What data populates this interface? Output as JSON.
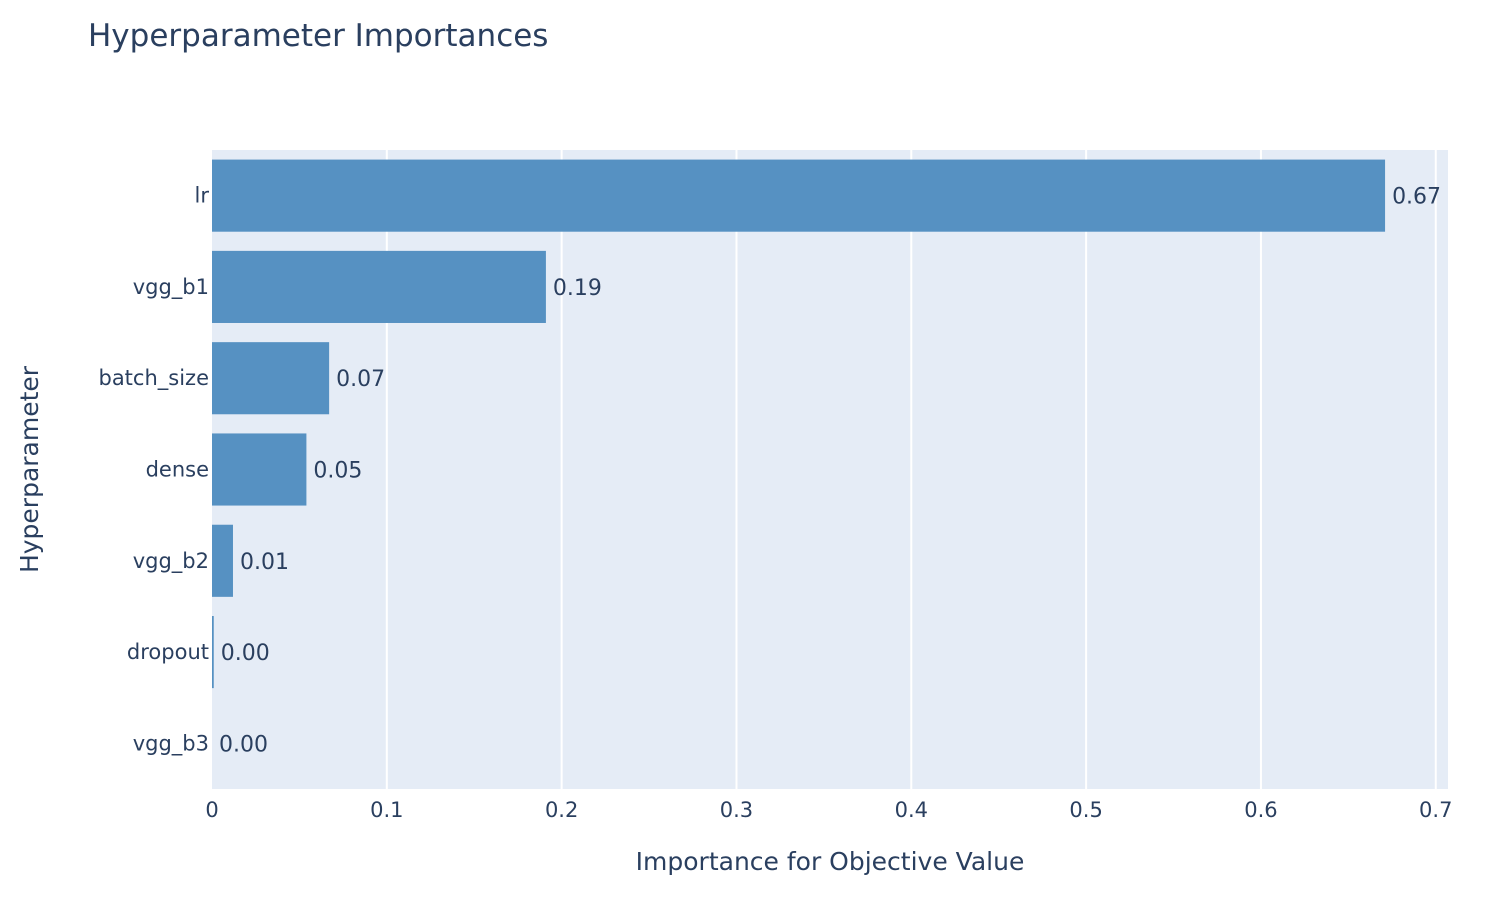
{
  "chart_data": {
    "type": "bar",
    "orientation": "horizontal",
    "title": "Hyperparameter Importances",
    "xlabel": "Importance for Objective Value",
    "ylabel": "Hyperparameter",
    "categories": [
      "lr",
      "vgg_b1",
      "batch_size",
      "dense",
      "vgg_b2",
      "dropout",
      "vgg_b3"
    ],
    "values": [
      0.671,
      0.191,
      0.067,
      0.054,
      0.012,
      0.001,
      0.0
    ],
    "data_labels": [
      "0.67",
      "0.19",
      "0.07",
      "0.05",
      "0.01",
      "0.00",
      "0.00"
    ],
    "xlim": [
      0,
      0.707
    ],
    "xticks": [
      0,
      0.1,
      0.2,
      0.3,
      0.4,
      0.5,
      0.6,
      0.7
    ],
    "xtick_labels": [
      "0",
      "0.1",
      "0.2",
      "0.3",
      "0.4",
      "0.5",
      "0.6",
      "0.7"
    ],
    "grid": true,
    "colors": {
      "bar": "#5691c2",
      "plot_bg": "#e5ecf6",
      "grid": "#ffffff",
      "text": "#2a3f5f"
    }
  }
}
